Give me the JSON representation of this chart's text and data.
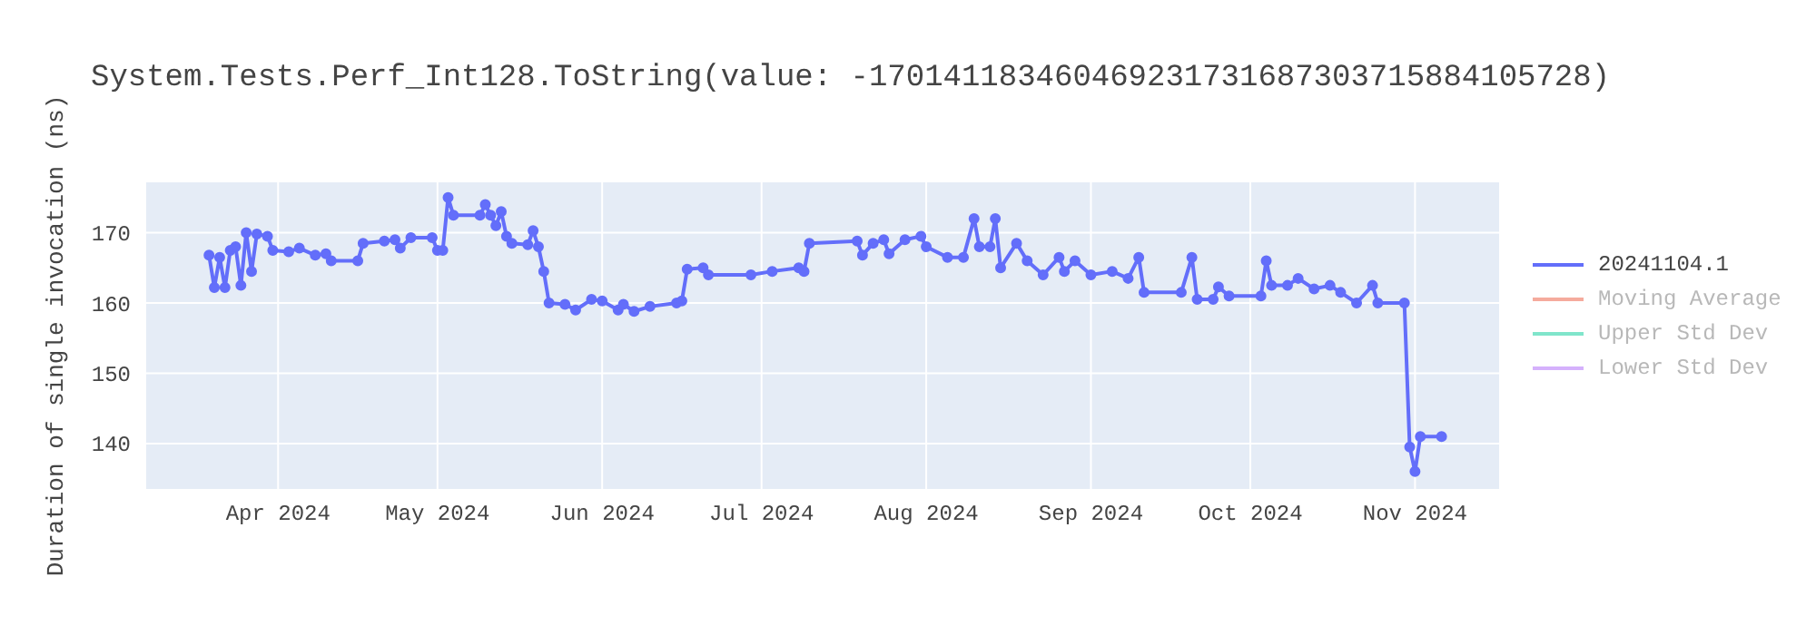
{
  "chart_data": {
    "type": "line",
    "title": "System.Tests.Perf_Int128.ToString(value: -170141183460469231731687303715884105728)",
    "ylabel": "Duration of single invocation (ns)",
    "x": [
      "2024-03-19",
      "2024-03-20",
      "2024-03-21",
      "2024-03-22",
      "2024-03-23",
      "2024-03-24",
      "2024-03-25",
      "2024-03-26",
      "2024-03-27",
      "2024-03-28",
      "2024-03-30",
      "2024-03-31",
      "2024-04-03",
      "2024-04-05",
      "2024-04-08",
      "2024-04-10",
      "2024-04-11",
      "2024-04-16",
      "2024-04-17",
      "2024-04-21",
      "2024-04-23",
      "2024-04-24",
      "2024-04-26",
      "2024-04-30",
      "2024-05-01",
      "2024-05-02",
      "2024-05-03",
      "2024-05-04",
      "2024-05-09",
      "2024-05-10",
      "2024-05-11",
      "2024-05-12",
      "2024-05-13",
      "2024-05-14",
      "2024-05-15",
      "2024-05-18",
      "2024-05-19",
      "2024-05-20",
      "2024-05-21",
      "2024-05-22",
      "2024-05-25",
      "2024-05-27",
      "2024-05-30",
      "2024-06-01",
      "2024-06-04",
      "2024-06-05",
      "2024-06-07",
      "2024-06-10",
      "2024-06-15",
      "2024-06-16",
      "2024-06-17",
      "2024-06-20",
      "2024-06-21",
      "2024-06-29",
      "2024-07-03",
      "2024-07-08",
      "2024-07-09",
      "2024-07-10",
      "2024-07-19",
      "2024-07-20",
      "2024-07-22",
      "2024-07-24",
      "2024-07-25",
      "2024-07-28",
      "2024-07-31",
      "2024-08-01",
      "2024-08-05",
      "2024-08-08",
      "2024-08-10",
      "2024-08-11",
      "2024-08-13",
      "2024-08-14",
      "2024-08-15",
      "2024-08-18",
      "2024-08-20",
      "2024-08-23",
      "2024-08-26",
      "2024-08-27",
      "2024-08-29",
      "2024-09-01",
      "2024-09-05",
      "2024-09-08",
      "2024-09-10",
      "2024-09-11",
      "2024-09-18",
      "2024-09-20",
      "2024-09-21",
      "2024-09-24",
      "2024-09-25",
      "2024-09-27",
      "2024-10-03",
      "2024-10-04",
      "2024-10-05",
      "2024-10-08",
      "2024-10-10",
      "2024-10-13",
      "2024-10-16",
      "2024-10-18",
      "2024-10-21",
      "2024-10-24",
      "2024-10-25",
      "2024-10-30",
      "2024-10-31",
      "2024-11-01",
      "2024-11-02",
      "2024-11-06"
    ],
    "series": [
      {
        "name": "20241104.1",
        "color": "#636efa",
        "values": [
          166.8,
          162.2,
          166.5,
          162.2,
          167.5,
          168,
          162.5,
          170,
          164.5,
          169.8,
          169.5,
          167.5,
          167.3,
          167.8,
          166.8,
          167,
          166,
          166,
          168.5,
          168.8,
          169,
          167.8,
          169.3,
          169.3,
          167.5,
          167.5,
          175,
          172.5,
          172.5,
          174,
          172.5,
          171,
          173,
          169.5,
          168.5,
          168.3,
          170.3,
          168,
          164.5,
          160,
          159.8,
          159,
          160.5,
          160.3,
          159,
          159.8,
          158.8,
          159.5,
          160,
          160.3,
          164.8,
          165,
          164,
          164,
          164.5,
          165,
          164.5,
          168.5,
          168.8,
          166.8,
          168.5,
          169,
          167,
          169,
          169.5,
          168,
          166.5,
          166.5,
          172,
          168,
          168,
          172,
          165,
          168.5,
          166,
          164,
          166.5,
          164.5,
          166,
          164,
          164.5,
          163.5,
          166.5,
          161.5,
          161.5,
          166.5,
          160.5,
          160.5,
          162.3,
          161,
          161,
          166,
          162.5,
          162.5,
          163.5,
          162,
          162.5,
          161.5,
          160,
          162.5,
          160,
          160,
          139.5,
          136,
          141,
          141
        ]
      },
      {
        "name": "Moving Average",
        "color": "#f5ab9d",
        "values": [
          null,
          null,
          null,
          null,
          null,
          null,
          null,
          null,
          null,
          null,
          null,
          null,
          null,
          null,
          null,
          null,
          null,
          null,
          null,
          null,
          null,
          null,
          null,
          null,
          null,
          null,
          null,
          null,
          null,
          null,
          null,
          null,
          null,
          null,
          null,
          null,
          null,
          null,
          null,
          null,
          null,
          null,
          null,
          null,
          null,
          null,
          null,
          null,
          null,
          null,
          null,
          null,
          null,
          null,
          null,
          null,
          null,
          null,
          null,
          null,
          null,
          null,
          null,
          null,
          null,
          null,
          null,
          null,
          null,
          null,
          null,
          null,
          null,
          null,
          null,
          null,
          null,
          null,
          null,
          null,
          null,
          null,
          null,
          null,
          null,
          null,
          null,
          null,
          null,
          null,
          null,
          null,
          null,
          null,
          null,
          null,
          null,
          null,
          null,
          null,
          null,
          null,
          null,
          null,
          null,
          null
        ]
      },
      {
        "name": "Upper Std Dev",
        "color": "#80e5cb",
        "values": [
          null,
          null,
          null,
          null,
          null,
          null,
          null,
          null,
          null,
          null,
          null,
          null,
          null,
          null,
          null,
          null,
          null,
          null,
          null,
          null,
          null,
          null,
          null,
          null,
          null,
          null,
          null,
          null,
          null,
          null,
          null,
          null,
          null,
          null,
          null,
          null,
          null,
          null,
          null,
          null,
          null,
          null,
          null,
          null,
          null,
          null,
          null,
          null,
          null,
          null,
          null,
          null,
          null,
          null,
          null,
          null,
          null,
          null,
          null,
          null,
          null,
          null,
          null,
          null,
          null,
          null,
          null,
          null,
          null,
          null,
          null,
          null,
          null,
          null,
          null,
          null,
          null,
          null,
          null,
          null,
          null,
          null,
          null,
          null,
          null,
          null,
          null,
          null,
          null,
          null,
          null,
          null,
          null,
          null,
          null,
          null,
          null,
          null,
          null,
          null,
          null,
          null,
          null,
          null,
          null,
          null
        ]
      },
      {
        "name": "Lower Std Dev",
        "color": "#d5b1fc",
        "values": [
          null,
          null,
          null,
          null,
          null,
          null,
          null,
          null,
          null,
          null,
          null,
          null,
          null,
          null,
          null,
          null,
          null,
          null,
          null,
          null,
          null,
          null,
          null,
          null,
          null,
          null,
          null,
          null,
          null,
          null,
          null,
          null,
          null,
          null,
          null,
          null,
          null,
          null,
          null,
          null,
          null,
          null,
          null,
          null,
          null,
          null,
          null,
          null,
          null,
          null,
          null,
          null,
          null,
          null,
          null,
          null,
          null,
          null,
          null,
          null,
          null,
          null,
          null,
          null,
          null,
          null,
          null,
          null,
          null,
          null,
          null,
          null,
          null,
          null,
          null,
          null,
          null,
          null,
          null,
          null,
          null,
          null,
          null,
          null,
          null,
          null,
          null,
          null,
          null,
          null,
          null,
          null,
          null,
          null,
          null,
          null,
          null,
          null,
          null,
          null,
          null,
          null,
          null,
          null,
          null,
          null
        ]
      }
    ],
    "xlim": [
      "2024-03-07",
      "2024-11-17"
    ],
    "xticks": [
      {
        "value": "2024-04-01",
        "label": "Apr 2024"
      },
      {
        "value": "2024-05-01",
        "label": "May 2024"
      },
      {
        "value": "2024-06-01",
        "label": "Jun 2024"
      },
      {
        "value": "2024-07-01",
        "label": "Jul 2024"
      },
      {
        "value": "2024-08-01",
        "label": "Aug 2024"
      },
      {
        "value": "2024-09-01",
        "label": "Sep 2024"
      },
      {
        "value": "2024-10-01",
        "label": "Oct 2024"
      },
      {
        "value": "2024-11-01",
        "label": "Nov 2024"
      }
    ],
    "ylim": [
      133.4,
      177.3
    ],
    "yticks": [
      140,
      150,
      160,
      170
    ],
    "grid": true,
    "legend": "right",
    "marker": "circle",
    "line_style": "solid"
  }
}
